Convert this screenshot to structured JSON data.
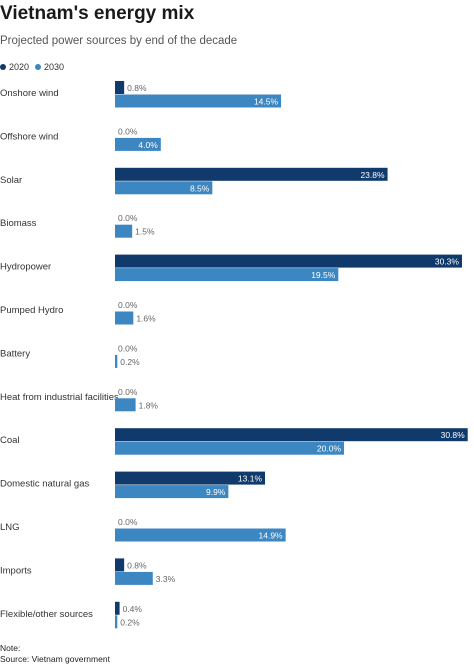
{
  "title": "Vietnam's energy mix",
  "subtitle": "Projected power sources by end of the decade",
  "colors": {
    "series_2020": "#0f3a6b",
    "series_2030": "#3c86c1",
    "label_inside": "#ffffff",
    "label_outside": "#666666",
    "category_text": "#333333"
  },
  "footer": {
    "note": "Note:",
    "source": "Source: Vietnam government"
  },
  "chart_data": {
    "type": "bar",
    "orientation": "horizontal",
    "legend_position": "top-left",
    "grid": false,
    "xlim": [
      0,
      31
    ],
    "categories": [
      "Onshore wind",
      "Offshore wind",
      "Solar",
      "Biomass",
      "Hydropower",
      "Pumped Hydro",
      "Battery",
      "Heat from industrial facilities",
      "Coal",
      "Domestic natural gas",
      "LNG",
      "Imports",
      "Flexible/other sources"
    ],
    "series": [
      {
        "name": "2020",
        "values": [
          0.8,
          0.0,
          23.8,
          0.0,
          30.3,
          0.0,
          0.0,
          0.0,
          30.8,
          13.1,
          0.0,
          0.8,
          0.4
        ],
        "labels": [
          "0.8%",
          "0.0%",
          "23.8%",
          "0.0%",
          "30.3%",
          "0.0%",
          "0.0%",
          "0.0%",
          "30.8%",
          "13.1%",
          "0.0%",
          "0.8%",
          "0.4%"
        ]
      },
      {
        "name": "2030",
        "values": [
          14.5,
          4.0,
          8.5,
          1.5,
          19.5,
          1.6,
          0.2,
          1.8,
          20.0,
          9.9,
          14.9,
          3.3,
          0.2
        ],
        "labels": [
          "14.5%",
          "4.0%",
          "8.5%",
          "1.5%",
          "19.5%",
          "1.6%",
          "0.2%",
          "1.8%",
          "20.0%",
          "9.9%",
          "14.9%",
          "3.3%",
          "0.2%"
        ]
      }
    ]
  }
}
